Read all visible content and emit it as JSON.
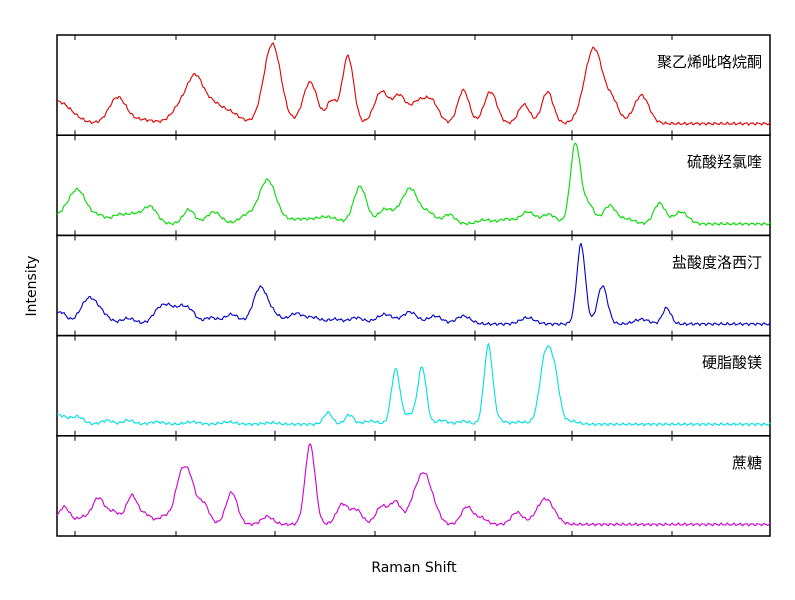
{
  "chart_data": {
    "type": "line",
    "xlabel": "Raman Shift",
    "ylabel": "Intensity",
    "grid": false,
    "legend": "none",
    "x_range": [
      0,
      100
    ],
    "y_range": [
      0,
      1
    ],
    "series": [
      {
        "name": "聚乙烯吡咯烷酮",
        "color": "#e00000",
        "peaks": [
          [
            0,
            0.28,
            2.0
          ],
          [
            8.5,
            0.33,
            1.2
          ],
          [
            12,
            0.05,
            1.5
          ],
          [
            18,
            0.3,
            1.5
          ],
          [
            19.5,
            0.38,
            1.0
          ],
          [
            21.5,
            0.22,
            1.2
          ],
          [
            24,
            0.15,
            1.5
          ],
          [
            30.2,
            1.0,
            1.2
          ],
          [
            35.5,
            0.52,
            1.0
          ],
          [
            38.5,
            0.28,
            0.7
          ],
          [
            40.8,
            0.85,
            0.8
          ],
          [
            45.5,
            0.4,
            1.0
          ],
          [
            48,
            0.34,
            0.9
          ],
          [
            50.5,
            0.25,
            1.0
          ],
          [
            52.5,
            0.28,
            1.0
          ],
          [
            57,
            0.42,
            0.8
          ],
          [
            60.8,
            0.4,
            0.9
          ],
          [
            65.5,
            0.24,
            0.8
          ],
          [
            68.8,
            0.4,
            0.8
          ],
          [
            75.3,
            0.95,
            1.3
          ],
          [
            78,
            0.22,
            0.8
          ],
          [
            81,
            0.03,
            2.0
          ],
          [
            82,
            0.33,
            1.0
          ]
        ]
      },
      {
        "name": "硫酸羟氯喹",
        "color": "#00dd00",
        "peaks": [
          [
            1,
            0.12,
            1.5
          ],
          [
            3,
            0.38,
            1.2
          ],
          [
            6,
            0.1,
            1.0
          ],
          [
            8.5,
            0.1,
            0.8
          ],
          [
            10.5,
            0.12,
            1.0
          ],
          [
            13,
            0.22,
            1.0
          ],
          [
            18.5,
            0.18,
            0.8
          ],
          [
            22,
            0.15,
            1.0
          ],
          [
            26.5,
            0.1,
            1.0
          ],
          [
            29.5,
            0.55,
            1.2
          ],
          [
            34,
            0.06,
            2.0
          ],
          [
            38,
            0.08,
            1.5
          ],
          [
            42.5,
            0.47,
            0.9
          ],
          [
            46,
            0.18,
            1.0
          ],
          [
            48.5,
            0.2,
            1.0
          ],
          [
            49.8,
            0.34,
            0.9
          ],
          [
            52,
            0.15,
            1.0
          ],
          [
            55,
            0.12,
            0.8
          ],
          [
            60,
            0.05,
            1.0
          ],
          [
            63,
            0.06,
            1.0
          ],
          [
            66,
            0.15,
            1.0
          ],
          [
            69,
            0.12,
            1.0
          ],
          [
            72.7,
            1.0,
            0.7
          ],
          [
            74.5,
            0.25,
            0.8
          ],
          [
            77.5,
            0.23,
            0.9
          ],
          [
            80,
            0.06,
            1.0
          ],
          [
            84.5,
            0.26,
            0.8
          ],
          [
            87.5,
            0.15,
            1.0
          ]
        ]
      },
      {
        "name": "盐酸度洛西汀",
        "color": "#0000c8",
        "peaks": [
          [
            0.5,
            0.15,
            0.8
          ],
          [
            4.5,
            0.32,
            1.2
          ],
          [
            6.5,
            0.08,
            1.0
          ],
          [
            10,
            0.07,
            1.0
          ],
          [
            14.5,
            0.2,
            1.0
          ],
          [
            16,
            0.15,
            0.8
          ],
          [
            17.5,
            0.18,
            0.7
          ],
          [
            18.8,
            0.15,
            0.7
          ],
          [
            21.5,
            0.08,
            1.0
          ],
          [
            24.5,
            0.12,
            1.0
          ],
          [
            28.5,
            0.45,
            1.0
          ],
          [
            30.5,
            0.1,
            1.0
          ],
          [
            33.5,
            0.13,
            1.0
          ],
          [
            36,
            0.08,
            1.0
          ],
          [
            39,
            0.06,
            1.0
          ],
          [
            42,
            0.08,
            1.0
          ],
          [
            46,
            0.12,
            1.2
          ],
          [
            49.5,
            0.15,
            1.0
          ],
          [
            53,
            0.1,
            1.0
          ],
          [
            57,
            0.1,
            1.0
          ],
          [
            66,
            0.08,
            1.0
          ],
          [
            73.5,
            1.0,
            0.6
          ],
          [
            76.5,
            0.48,
            0.7
          ],
          [
            82,
            0.06,
            1.0
          ],
          [
            85.5,
            0.2,
            0.6
          ]
        ]
      },
      {
        "name": "硬脂酸镁",
        "color": "#00e0e0",
        "peaks": [
          [
            0,
            0.12,
            1.5
          ],
          [
            3,
            0.08,
            0.8
          ],
          [
            7,
            0.05,
            0.8
          ],
          [
            10,
            0.05,
            0.8
          ],
          [
            14,
            0.03,
            1.0
          ],
          [
            19,
            0.03,
            1.0
          ],
          [
            24,
            0.03,
            1.0
          ],
          [
            30,
            0.02,
            1.0
          ],
          [
            38,
            0.15,
            0.6
          ],
          [
            41,
            0.12,
            0.6
          ],
          [
            44,
            0.04,
            1.0
          ],
          [
            47.5,
            0.7,
            0.6
          ],
          [
            49.5,
            0.12,
            0.8
          ],
          [
            51.2,
            0.72,
            0.6
          ],
          [
            54,
            0.05,
            0.8
          ],
          [
            57,
            0.04,
            0.8
          ],
          [
            60.5,
            1.0,
            0.6
          ],
          [
            62,
            0.05,
            0.8
          ],
          [
            65,
            0.03,
            1.0
          ],
          [
            68.5,
            0.85,
            0.8
          ],
          [
            69.8,
            0.55,
            0.7
          ],
          [
            72,
            0.04,
            1.0
          ]
        ]
      },
      {
        "name": "蔗糖",
        "color": "#d000d0",
        "peaks": [
          [
            1,
            0.22,
            0.8
          ],
          [
            3.5,
            0.08,
            0.8
          ],
          [
            5.8,
            0.33,
            0.9
          ],
          [
            8,
            0.15,
            0.8
          ],
          [
            10.5,
            0.36,
            0.8
          ],
          [
            12.5,
            0.12,
            0.8
          ],
          [
            15,
            0.1,
            0.8
          ],
          [
            17.5,
            0.63,
            0.9
          ],
          [
            18.8,
            0.35,
            0.7
          ],
          [
            20.5,
            0.27,
            0.8
          ],
          [
            24.5,
            0.4,
            0.8
          ],
          [
            29.5,
            0.1,
            0.8
          ],
          [
            35.5,
            1.0,
            0.7
          ],
          [
            40,
            0.25,
            0.8
          ],
          [
            42,
            0.18,
            0.8
          ],
          [
            45.5,
            0.22,
            0.8
          ],
          [
            47.5,
            0.28,
            0.8
          ],
          [
            50,
            0.25,
            0.8
          ],
          [
            51.5,
            0.58,
            0.9
          ],
          [
            53,
            0.15,
            0.8
          ],
          [
            57.5,
            0.22,
            0.8
          ],
          [
            59.5,
            0.08,
            0.8
          ],
          [
            64.5,
            0.15,
            0.8
          ],
          [
            68.5,
            0.32,
            1.2
          ]
        ]
      }
    ]
  }
}
